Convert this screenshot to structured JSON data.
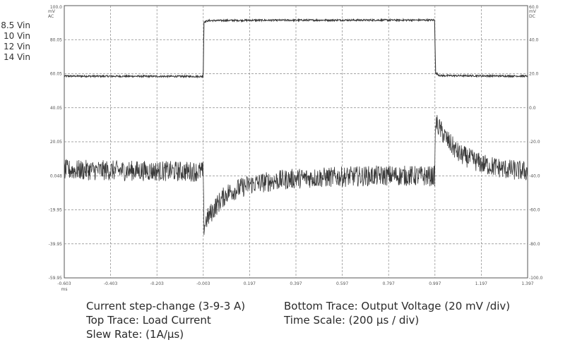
{
  "chart_data": {
    "type": "line",
    "x_unit": "ms",
    "xlim": [
      -0.603,
      1.397
    ],
    "x_ticks": [
      "-0.603",
      "-0.403",
      "-0.203",
      "-0.003",
      "0.197",
      "0.397",
      "0.597",
      "0.797",
      "0.997",
      "1.197",
      "1.397"
    ],
    "left_axis": {
      "unit": "mV",
      "coupling": "AC",
      "top_label": "100.0",
      "ticks": [
        "100.0",
        "80.05",
        "60.05",
        "40.05",
        "20.05",
        "0.048",
        "-19.95",
        "-39.95",
        "-59.95"
      ],
      "ylim": [
        -59.95,
        100.0
      ]
    },
    "right_axis": {
      "unit": "mV",
      "coupling": "DC",
      "ticks": [
        "60.0",
        "40.0",
        "20.0",
        "0.0",
        "-20.0",
        "-40.0",
        "-60.0",
        "-80.0",
        "-100.0"
      ],
      "ylim": [
        -100.0,
        60.0
      ]
    },
    "legend_entries": [
      "8.5 Vin",
      "10 Vin",
      "12 Vin",
      "14 Vin"
    ],
    "grid": true,
    "series": [
      {
        "color": "#3a3a3a",
        "x": [
          -0.603,
          -0.004,
          -0.003,
          0.0,
          0.02,
          0.2,
          0.6,
          0.996,
          0.997,
          1.0,
          1.02,
          1.397
        ],
        "y": [
          58.6,
          58.4,
          62.0,
          90.5,
          91.2,
          91.4,
          91.5,
          91.5,
          80.0,
          60.2,
          58.9,
          58.6
        ]
      },
      {
        "color": "#3a3a3a",
        "x": [
          -0.603,
          -0.3,
          -0.004,
          -0.003,
          0.0,
          0.01,
          0.05,
          0.1,
          0.2,
          0.3,
          0.4,
          0.6,
          0.8,
          0.996,
          0.997,
          1.0,
          1.05,
          1.1,
          1.2,
          1.3,
          1.397
        ],
        "y": [
          3.5,
          3.0,
          2.5,
          -5.0,
          -30.0,
          -26.0,
          -18.0,
          -10.0,
          -5.0,
          -3.0,
          -1.5,
          -0.5,
          0.2,
          -0.2,
          10.0,
          31.5,
          21.0,
          13.0,
          7.0,
          4.0,
          2.5
        ]
      }
    ]
  },
  "captions": {
    "left": [
      "Current step-change (3-9-3 A)",
      "Top Trace: Load Current",
      "Slew Rate: (1A/µs)"
    ],
    "right": [
      "Bottom Trace: Output Voltage (20 mV /div)",
      "Time Scale: (200 µs / div)"
    ]
  }
}
